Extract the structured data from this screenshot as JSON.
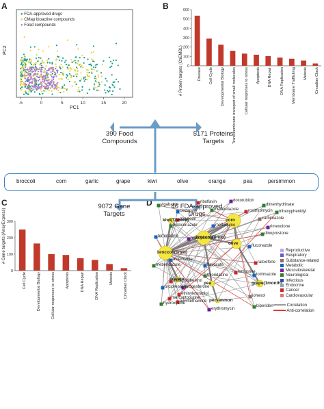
{
  "panels": {
    "a": "A",
    "b": "B",
    "c": "C",
    "d": "D"
  },
  "scatter": {
    "legend": [
      {
        "label": "FDA-approved drugs",
        "color": "#1aa08c"
      },
      {
        "label": "CMap bioactive compounds",
        "color": "#e8d040"
      },
      {
        "label": "Food compounds",
        "color": "#b07ad0"
      }
    ],
    "xlabel": "PC1",
    "ylabel": "PC2",
    "xticks": [
      "-5",
      "0",
      "5",
      "10",
      "15",
      "20"
    ]
  },
  "flow": {
    "food_compounds": "390 Food\nCompounds",
    "protein_targets": "5171 Proteins\nTargets",
    "gene_targets": "9072 Gene\nTargets",
    "fda_drugs": "46 FDA-approved\nDrugs"
  },
  "foods": [
    "broccoli",
    "corn",
    "garlic",
    "grape",
    "kiwi",
    "olive",
    "orange",
    "pea",
    "persimmon"
  ],
  "chart_data": [
    {
      "type": "bar",
      "categories": [
        "Disease",
        "Cell Cycle",
        "Developmental Biology",
        "Transmembrane transport of small molecules",
        "Cellular responses to stress",
        "Apoptosis",
        "DNA Repair",
        "DNA Replication",
        "Membrane Trafficking",
        "Meiosis",
        "Circadian Clock"
      ],
      "values": [
        535,
        290,
        225,
        160,
        130,
        118,
        103,
        88,
        75,
        55,
        25
      ],
      "ylabel": "# Protein targets (ChEMBL)",
      "ylim": [
        0,
        600
      ],
      "yticks": [
        "0",
        "100",
        "200",
        "300",
        "400",
        "500",
        "600"
      ],
      "color": "#c0392b"
    },
    {
      "type": "bar",
      "categories": [
        "Cell Cycle",
        "Developmental Biology",
        "Cellular responses to stress",
        "Apoptosis",
        "DNA Repair",
        "DNA Replication",
        "Meiosis",
        "Circadian Clock"
      ],
      "values": [
        250,
        165,
        100,
        95,
        75,
        65,
        40,
        15
      ],
      "ylabel": "# Gene targets (ArrayExpress)",
      "ylim": [
        0,
        300
      ],
      "yticks": [
        "0",
        "100",
        "200",
        "300"
      ],
      "color": "#c0392b"
    }
  ],
  "network": {
    "hubs": [
      {
        "label": "corn"
      },
      {
        "label": "broccoli(1min)"
      },
      {
        "label": "broccoli(0min)"
      },
      {
        "label": "olive"
      },
      {
        "label": "grape(1month)"
      },
      {
        "label": "orange"
      },
      {
        "label": "kiwi(T(week)"
      },
      {
        "label": "pea"
      },
      {
        "label": "persimmon"
      }
    ],
    "drugs": [
      {
        "label": "vigabatrin",
        "color": "#2e7d32"
      },
      {
        "label": "riboflavin",
        "color": "#c62828"
      },
      {
        "label": "doxorubicin",
        "color": "#6a1b9a"
      },
      {
        "label": "dimenhydrinate",
        "color": "#2e7d32"
      },
      {
        "label": "clozapine",
        "color": "#1565c0"
      },
      {
        "label": "mebendazole",
        "color": "#2e7d32"
      },
      {
        "label": "roxithromycin",
        "color": "#c62828"
      },
      {
        "label": "trihexyphenidyl",
        "color": "#2e7d32"
      },
      {
        "label": "carbimazole",
        "color": "#8d6e63"
      },
      {
        "label": "minoxidil",
        "color": "#c62828"
      },
      {
        "label": "rimexolone",
        "color": "#6a1b9a"
      },
      {
        "label": "mefloquine",
        "color": "#1565c0"
      },
      {
        "label": "dinoprostone",
        "color": "#2e7d32"
      },
      {
        "label": "butoconazole",
        "color": "#2e7d32"
      },
      {
        "label": "terfenadine",
        "color": "#1565c0"
      },
      {
        "label": "mycophenolic",
        "color": "#6a1b9a"
      },
      {
        "label": "fluconazole",
        "color": "#1565c0"
      },
      {
        "label": "mebendazole",
        "color": "#2e7d32"
      },
      {
        "label": "astemizole",
        "color": "#1565c0"
      },
      {
        "label": "flavoxate",
        "color": "#1565c0"
      },
      {
        "label": "orciprenaline",
        "color": "#1565c0"
      },
      {
        "label": "ethinylestradiol",
        "color": "#c62828"
      },
      {
        "label": "thioridazine",
        "color": "#2e7d32"
      },
      {
        "label": "diethylstilbestrol",
        "color": "#c62828"
      },
      {
        "label": "lomustine",
        "color": "#c62828"
      },
      {
        "label": "lotrimazole",
        "color": "#1565c0"
      },
      {
        "label": "iohexol",
        "color": "#8d6e63"
      },
      {
        "label": "biperiden",
        "color": "#2e7d32"
      },
      {
        "label": "raloxifene",
        "color": "#c62828"
      },
      {
        "label": "progesterone",
        "color": "#6a1b9a"
      },
      {
        "label": "hydroxyzine",
        "color": "#2e7d32"
      },
      {
        "label": "pyrimethamine",
        "color": "#c62828"
      },
      {
        "label": "mercaptopurine",
        "color": "#c62828"
      },
      {
        "label": "erythromycin",
        "color": "#6a1b9a"
      }
    ],
    "legend": [
      {
        "label": "Reproductive",
        "color": "#c8a0e0"
      },
      {
        "label": "Respiratory",
        "color": "#6a5acd"
      },
      {
        "label": "Substance-related",
        "color": "#8d6e63"
      },
      {
        "label": "Metabolic",
        "color": "#1565c0"
      },
      {
        "label": "Musculoskeletal",
        "color": "#7b1fa2"
      },
      {
        "label": "Neurological",
        "color": "#2e7d32"
      },
      {
        "label": "Infectious",
        "color": "#3949ab"
      },
      {
        "label": "Endocrine",
        "color": "#90a4ae"
      },
      {
        "label": "Cancer",
        "color": "#c62828"
      },
      {
        "label": "Cardiovascular",
        "color": "#e57373"
      }
    ],
    "edge_legend": [
      {
        "label": "Correlation",
        "color": "#999999"
      },
      {
        "label": "Anti-correlation",
        "color": "#e53935"
      }
    ]
  }
}
